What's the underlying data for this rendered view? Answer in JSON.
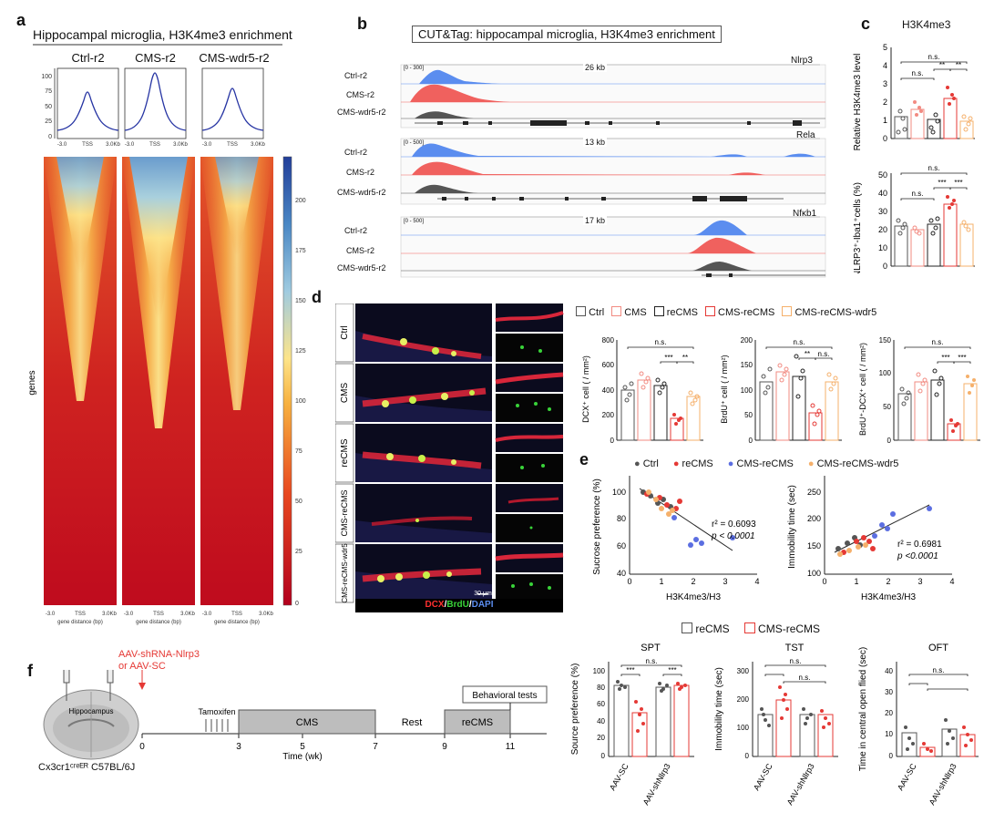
{
  "panel_a": {
    "label": "a",
    "title": "Hippocampal microglia, H3K4me3 enrichment",
    "groups": [
      "Ctrl-r2",
      "CMS-r2",
      "CMS-wdr5-r2"
    ],
    "profile_ticks_y": [
      "100",
      "75",
      "50",
      "25",
      "0"
    ],
    "profile_ticks_x": [
      "-3.0",
      "TSS",
      "3.0Kb"
    ],
    "heat_ticks_x": [
      "-3.0",
      "TSS",
      "3.0Kb"
    ],
    "heat_xlabel": "gene distance (bp)",
    "heat_ylabel": "genes",
    "colorbar_ticks": [
      "200",
      "175",
      "150",
      "125",
      "100",
      "75",
      "50",
      "25",
      "0"
    ]
  },
  "panel_b": {
    "label": "b",
    "title": "CUT&Tag: hippocampal microglia, H3K4me3 enrichment",
    "tracks": [
      "Ctrl-r2",
      "CMS-r2",
      "CMS-wdr5-r2"
    ],
    "loci": [
      {
        "gene": "Nlrp3",
        "size": "26 kb",
        "range": "[0 - 300]"
      },
      {
        "gene": "Rela",
        "size": "13 kb",
        "range": "[0 - 500]"
      },
      {
        "gene": "Nfκb1",
        "size": "17 kb",
        "range": "[0 - 500]"
      }
    ]
  },
  "panel_c": {
    "label": "c",
    "title": "H3K4me3",
    "top_ylabel": "Relative H3K4me3 level",
    "top_yticks": [
      "5",
      "4",
      "3",
      "2",
      "1",
      "0"
    ],
    "bottom_ylabel": "NLRP3⁺-Iba1⁺cells (%)",
    "bottom_yticks": [
      "50",
      "40",
      "30",
      "20",
      "10",
      "0"
    ],
    "sig": {
      "ns": "n.s.",
      "two": "**",
      "three": "***"
    }
  },
  "panel_d": {
    "label": "d",
    "rows": [
      "Ctrl",
      "CMS",
      "reCMS",
      "CMS-reCMS",
      "CMS-reCMS-wdr5"
    ],
    "scale": "30 μm",
    "stain_dcx": "DCX",
    "stain_brdu": "BrdU",
    "stain_dapi": "DAPI",
    "slash": "/",
    "legend": [
      "Ctrl",
      "CMS",
      "reCMS",
      "CMS-reCMS",
      "CMS-reCMS-wdr5"
    ],
    "yl1": "DCX⁺ cell ( / mm²)",
    "yl2": "BrdU⁺ cell ( / mm²)",
    "yl3": "BrdU⁺-DCX⁺ cell ( / mm²)",
    "ticks1": [
      "800",
      "600",
      "400",
      "200",
      "0"
    ],
    "ticks2": [
      "200",
      "150",
      "100",
      "50",
      "0"
    ],
    "ticks3": [
      "150",
      "100",
      "50",
      "0"
    ]
  },
  "panel_e": {
    "label": "e",
    "legend": [
      "Ctrl",
      "reCMS",
      "CMS-reCMS",
      "CMS-reCMS-wdr5"
    ],
    "left_ylabel": "Sucrose preference (%)",
    "left_yticks": [
      "100",
      "80",
      "60",
      "40"
    ],
    "right_ylabel": "Immobility time (sec)",
    "right_yticks": [
      "250",
      "200",
      "150",
      "100"
    ],
    "xlabel": "H3K4me3/H3",
    "xticks": [
      "0",
      "1",
      "2",
      "3",
      "4"
    ],
    "left_r2": "r² = 0.6093",
    "left_p": "p < 0.0001",
    "right_r2": "r² = 0.6981",
    "right_p": "p <0.0001"
  },
  "panel_f": {
    "label": "f",
    "virus": "AAV-shRNA-Nlrp3",
    "virus_or": "or AAV-SC",
    "brain_label": "Hippocampus",
    "mouse": "Cx3cr1ᶜʳᵉᴱᴿ C57BL/6J",
    "tamoxifen": "Tamoxifen",
    "cms": "CMS",
    "rest": "Rest",
    "recms": "reCMS",
    "behavioral": "Behavioral tests",
    "timeline_ticks": [
      "0",
      "3",
      "5",
      "7",
      "9",
      "11"
    ],
    "time_label": "Time (wk)",
    "legend": [
      "reCMS",
      "CMS-reCMS"
    ],
    "spt_title": "SPT",
    "tst_title": "TST",
    "oft_title": "OFT",
    "spt_ylabel": "Source preference (%)",
    "tst_ylabel": "Immobility time (sec)",
    "oft_ylabel": "Time in central open flied (sec)",
    "spt_yticks": [
      "100",
      "80",
      "60",
      "40",
      "20",
      "0"
    ],
    "tst_yticks": [
      "300",
      "200",
      "100",
      "0"
    ],
    "oft_yticks": [
      "40",
      "30",
      "20",
      "10",
      "0"
    ],
    "x_groups": [
      "AAV-SC",
      "AAV-shNlrp3"
    ]
  },
  "colors": {
    "ctrl": "#555555",
    "cms": "#f28b82",
    "recms": "#333333",
    "cmsrecms": "#e53935",
    "wdr5": "#f5b06b",
    "blue": "#5b6ee1",
    "trackBlue": "#5b8def",
    "trackRed": "#f0615e",
    "trackGray": "#555555"
  }
}
